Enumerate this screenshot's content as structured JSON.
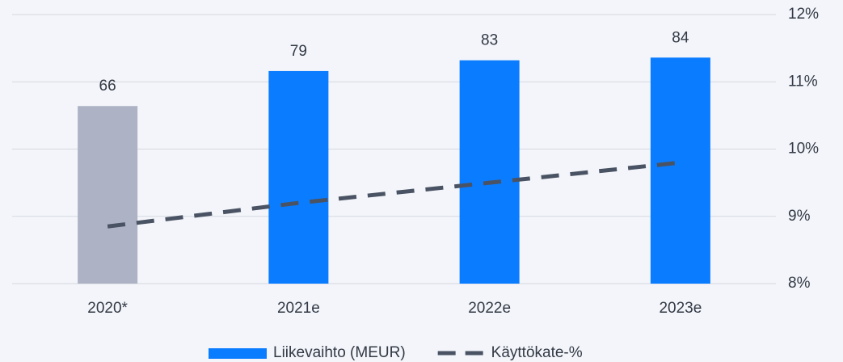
{
  "chart_data": {
    "type": "bar_line",
    "categories": [
      "2020*",
      "2021e",
      "2022e",
      "2023e"
    ],
    "series": [
      {
        "name": "Liikevaihto (MEUR)",
        "type": "bar",
        "color": "#0a7cff",
        "colors": [
          "#adb3c4",
          "#0a7cff",
          "#0a7cff",
          "#0a7cff"
        ],
        "values": [
          66,
          79,
          83,
          84
        ]
      },
      {
        "name": "Käyttökate-%",
        "type": "line",
        "axis": "y2",
        "color": "#4a5363",
        "dashed": true,
        "values": [
          8.85,
          9.2,
          9.5,
          9.8
        ]
      }
    ],
    "ylim": [
      0,
      100
    ],
    "y2lim": [
      8,
      12
    ],
    "y2ticks": [
      {
        "value": 8,
        "label": "8%"
      },
      {
        "value": 9,
        "label": "9%"
      },
      {
        "value": 10,
        "label": "10%"
      },
      {
        "value": 11,
        "label": "11%"
      },
      {
        "value": 12,
        "label": "12%"
      }
    ],
    "grid": true,
    "legend": "bottom"
  }
}
